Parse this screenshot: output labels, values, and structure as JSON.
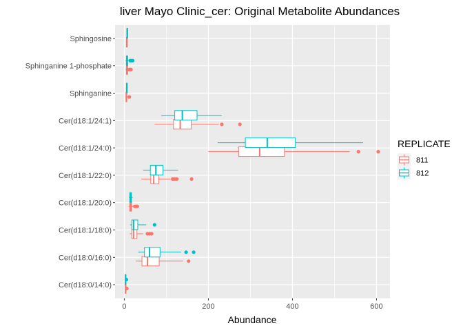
{
  "chart_data": {
    "type": "boxplot",
    "orientation": "horizontal",
    "title": "liver Mayo Clinic_cer: Original Metabolite Abundances",
    "xlabel": "Abundance",
    "ylabel": "",
    "xlim": [
      -22,
      632
    ],
    "xticks": [
      0,
      200,
      400,
      600
    ],
    "grid": true,
    "legend": {
      "title": "REPLICATE",
      "position": "right"
    },
    "categories": [
      "Sphingosine",
      "Sphinganine 1-phosphate",
      "Sphinganine",
      "Cer(d18:1/24:1)",
      "Cer(d18:1/24:0)",
      "Cer(d18:1/22:0)",
      "Cer(d18:1/20:0)",
      "Cer(d18:1/18:0)",
      "Cer(d18:0/16:0)",
      "Cer(d18:0/14:0)"
    ],
    "series": [
      {
        "name": "811",
        "color": "#F8766D",
        "boxes": [
          {
            "min": 4,
            "q1": 5,
            "median": 6,
            "q3": 7,
            "max": 8,
            "outliers": []
          },
          {
            "min": 3,
            "q1": 5,
            "median": 6,
            "q3": 8,
            "max": 10,
            "outliers": [
              12,
              14,
              16
            ]
          },
          {
            "min": 3,
            "q1": 4,
            "median": 5,
            "q3": 6,
            "max": 8,
            "outliers": [
              12
            ]
          },
          {
            "min": 72,
            "q1": 117,
            "median": 133,
            "q3": 159,
            "max": 225,
            "outliers": [
              232,
              275
            ]
          },
          {
            "min": 200,
            "q1": 272,
            "median": 322,
            "q3": 381,
            "max": 536,
            "outliers": [
              557,
              604
            ]
          },
          {
            "min": 40,
            "q1": 63,
            "median": 70,
            "q3": 82,
            "max": 110,
            "outliers": [
              115,
              120,
              125,
              160
            ]
          },
          {
            "min": 10,
            "q1": 13,
            "median": 15,
            "q3": 17,
            "max": 22,
            "outliers": [
              25,
              28,
              31
            ]
          },
          {
            "min": 13,
            "q1": 18,
            "median": 22,
            "q3": 30,
            "max": 45,
            "outliers": [
              55,
              60,
              65
            ]
          },
          {
            "min": 27,
            "q1": 42,
            "median": 55,
            "q3": 83,
            "max": 140,
            "outliers": [
              153
            ]
          },
          {
            "min": 1,
            "q1": 2,
            "median": 3,
            "q3": 4,
            "max": 5,
            "outliers": [
              6
            ]
          }
        ]
      },
      {
        "name": "812",
        "color": "#00BFC4",
        "boxes": [
          {
            "min": 5,
            "q1": 6,
            "median": 7,
            "q3": 8,
            "max": 9,
            "outliers": []
          },
          {
            "min": 3,
            "q1": 5,
            "median": 6,
            "q3": 8,
            "max": 10,
            "outliers": [
              14,
              17,
              20
            ]
          },
          {
            "min": 4,
            "q1": 5,
            "median": 6,
            "q3": 7,
            "max": 8,
            "outliers": []
          },
          {
            "min": 88,
            "q1": 120,
            "median": 138,
            "q3": 173,
            "max": 232,
            "outliers": []
          },
          {
            "min": 222,
            "q1": 288,
            "median": 340,
            "q3": 407,
            "max": 568,
            "outliers": []
          },
          {
            "min": 45,
            "q1": 62,
            "median": 75,
            "q3": 92,
            "max": 128,
            "outliers": []
          },
          {
            "min": 11,
            "q1": 13,
            "median": 15,
            "q3": 17,
            "max": 20,
            "outliers": []
          },
          {
            "min": 14,
            "q1": 18,
            "median": 22,
            "q3": 32,
            "max": 52,
            "outliers": [
              72
            ]
          },
          {
            "min": 33,
            "q1": 48,
            "median": 60,
            "q3": 85,
            "max": 135,
            "outliers": [
              147,
              165
            ]
          },
          {
            "min": 1,
            "q1": 2,
            "median": 3,
            "q3": 4,
            "max": 4,
            "outliers": [
              5
            ]
          }
        ]
      }
    ]
  }
}
